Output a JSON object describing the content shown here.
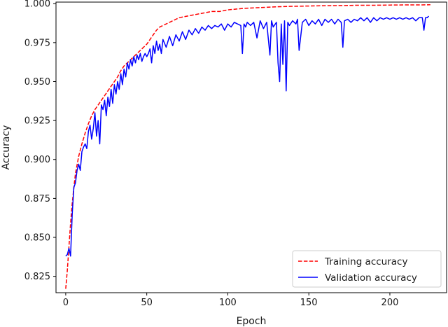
{
  "chart_data": {
    "type": "line",
    "title": "",
    "xlabel": "Epoch",
    "ylabel": "Accuracy",
    "xlim": [
      -6,
      235
    ],
    "ylim": [
      0.8145,
      1.001
    ],
    "xticks": [
      0,
      50,
      100,
      150,
      200
    ],
    "xtick_labels": [
      "0",
      "50",
      "100",
      "150",
      "200"
    ],
    "yticks": [
      0.825,
      0.85,
      0.875,
      0.9,
      0.925,
      0.95,
      0.975,
      1.0
    ],
    "ytick_labels": [
      "0.825",
      "0.850",
      "0.875",
      "0.900",
      "0.925",
      "0.950",
      "0.975",
      "1.000"
    ],
    "grid": false,
    "legend_position": "lower right",
    "series": [
      {
        "name": "Training accuracy",
        "color": "#ff0000",
        "style": "dashed",
        "x": [
          0,
          1,
          2,
          3,
          4,
          5,
          6,
          8,
          10,
          12,
          14,
          16,
          18,
          20,
          22,
          24,
          26,
          28,
          30,
          32,
          34,
          36,
          38,
          40,
          42,
          44,
          46,
          48,
          50,
          52,
          54,
          56,
          58,
          60,
          62,
          64,
          66,
          68,
          70,
          75,
          80,
          85,
          90,
          95,
          100,
          110,
          120,
          130,
          140,
          150,
          160,
          170,
          180,
          190,
          200,
          210,
          215,
          220,
          225
        ],
        "values": [
          0.817,
          0.829,
          0.844,
          0.859,
          0.872,
          0.882,
          0.891,
          0.902,
          0.91,
          0.917,
          0.923,
          0.928,
          0.932,
          0.935,
          0.938,
          0.941,
          0.944,
          0.947,
          0.95,
          0.953,
          0.957,
          0.96,
          0.962,
          0.964,
          0.966,
          0.968,
          0.97,
          0.972,
          0.974,
          0.977,
          0.98,
          0.983,
          0.985,
          0.986,
          0.987,
          0.988,
          0.989,
          0.99,
          0.991,
          0.992,
          0.993,
          0.994,
          0.995,
          0.995,
          0.996,
          0.997,
          0.9975,
          0.998,
          0.9983,
          0.9985,
          0.9987,
          0.9988,
          0.999,
          0.999,
          0.9991,
          0.9992,
          0.9992,
          0.9992,
          0.9993
        ]
      },
      {
        "name": "Validation accuracy",
        "color": "#0000ff",
        "style": "solid",
        "x": [
          0,
          1,
          2,
          3,
          4,
          5,
          6,
          7,
          8,
          9,
          10,
          11,
          12,
          13,
          14,
          15,
          16,
          17,
          18,
          19,
          20,
          21,
          22,
          23,
          24,
          25,
          26,
          27,
          28,
          29,
          30,
          31,
          32,
          33,
          34,
          35,
          36,
          37,
          38,
          39,
          40,
          41,
          42,
          43,
          44,
          45,
          46,
          47,
          48,
          49,
          50,
          51,
          52,
          53,
          54,
          55,
          56,
          57,
          58,
          59,
          60,
          62,
          64,
          66,
          68,
          70,
          72,
          74,
          76,
          78,
          80,
          82,
          84,
          86,
          88,
          90,
          92,
          94,
          96,
          98,
          100,
          102,
          104,
          106,
          108,
          109,
          110,
          111,
          112,
          114,
          116,
          118,
          120,
          122,
          124,
          126,
          127,
          128,
          130,
          131,
          132,
          133,
          134,
          135,
          136,
          137,
          138,
          140,
          142,
          143,
          144,
          146,
          148,
          150,
          152,
          154,
          156,
          158,
          160,
          162,
          164,
          166,
          168,
          170,
          171,
          172,
          174,
          176,
          178,
          180,
          182,
          184,
          186,
          188,
          190,
          192,
          194,
          196,
          198,
          200,
          202,
          204,
          206,
          208,
          210,
          212,
          214,
          216,
          218,
          220,
          221,
          222,
          223,
          224
        ],
        "values": [
          0.838,
          0.839,
          0.843,
          0.838,
          0.865,
          0.882,
          0.885,
          0.893,
          0.897,
          0.893,
          0.905,
          0.908,
          0.91,
          0.907,
          0.918,
          0.922,
          0.913,
          0.92,
          0.93,
          0.915,
          0.925,
          0.91,
          0.935,
          0.932,
          0.938,
          0.928,
          0.94,
          0.934,
          0.945,
          0.936,
          0.948,
          0.942,
          0.95,
          0.945,
          0.955,
          0.948,
          0.958,
          0.953,
          0.962,
          0.958,
          0.964,
          0.96,
          0.966,
          0.962,
          0.967,
          0.964,
          0.968,
          0.963,
          0.966,
          0.968,
          0.966,
          0.968,
          0.971,
          0.962,
          0.973,
          0.968,
          0.976,
          0.97,
          0.974,
          0.968,
          0.977,
          0.972,
          0.979,
          0.973,
          0.98,
          0.976,
          0.982,
          0.977,
          0.983,
          0.98,
          0.984,
          0.981,
          0.985,
          0.983,
          0.986,
          0.984,
          0.986,
          0.985,
          0.987,
          0.983,
          0.987,
          0.985,
          0.988,
          0.987,
          0.986,
          0.968,
          0.987,
          0.985,
          0.988,
          0.986,
          0.988,
          0.978,
          0.989,
          0.984,
          0.988,
          0.967,
          0.989,
          0.985,
          0.988,
          0.962,
          0.95,
          0.987,
          0.961,
          0.989,
          0.944,
          0.988,
          0.986,
          0.989,
          0.987,
          0.99,
          0.97,
          0.988,
          0.99,
          0.986,
          0.989,
          0.987,
          0.99,
          0.986,
          0.99,
          0.988,
          0.99,
          0.987,
          0.99,
          0.988,
          0.972,
          0.989,
          0.99,
          0.988,
          0.99,
          0.989,
          0.991,
          0.989,
          0.991,
          0.988,
          0.991,
          0.989,
          0.991,
          0.99,
          0.991,
          0.99,
          0.991,
          0.99,
          0.991,
          0.99,
          0.991,
          0.99,
          0.991,
          0.989,
          0.991,
          0.991,
          0.983,
          0.991,
          0.991,
          0.992
        ]
      }
    ]
  }
}
